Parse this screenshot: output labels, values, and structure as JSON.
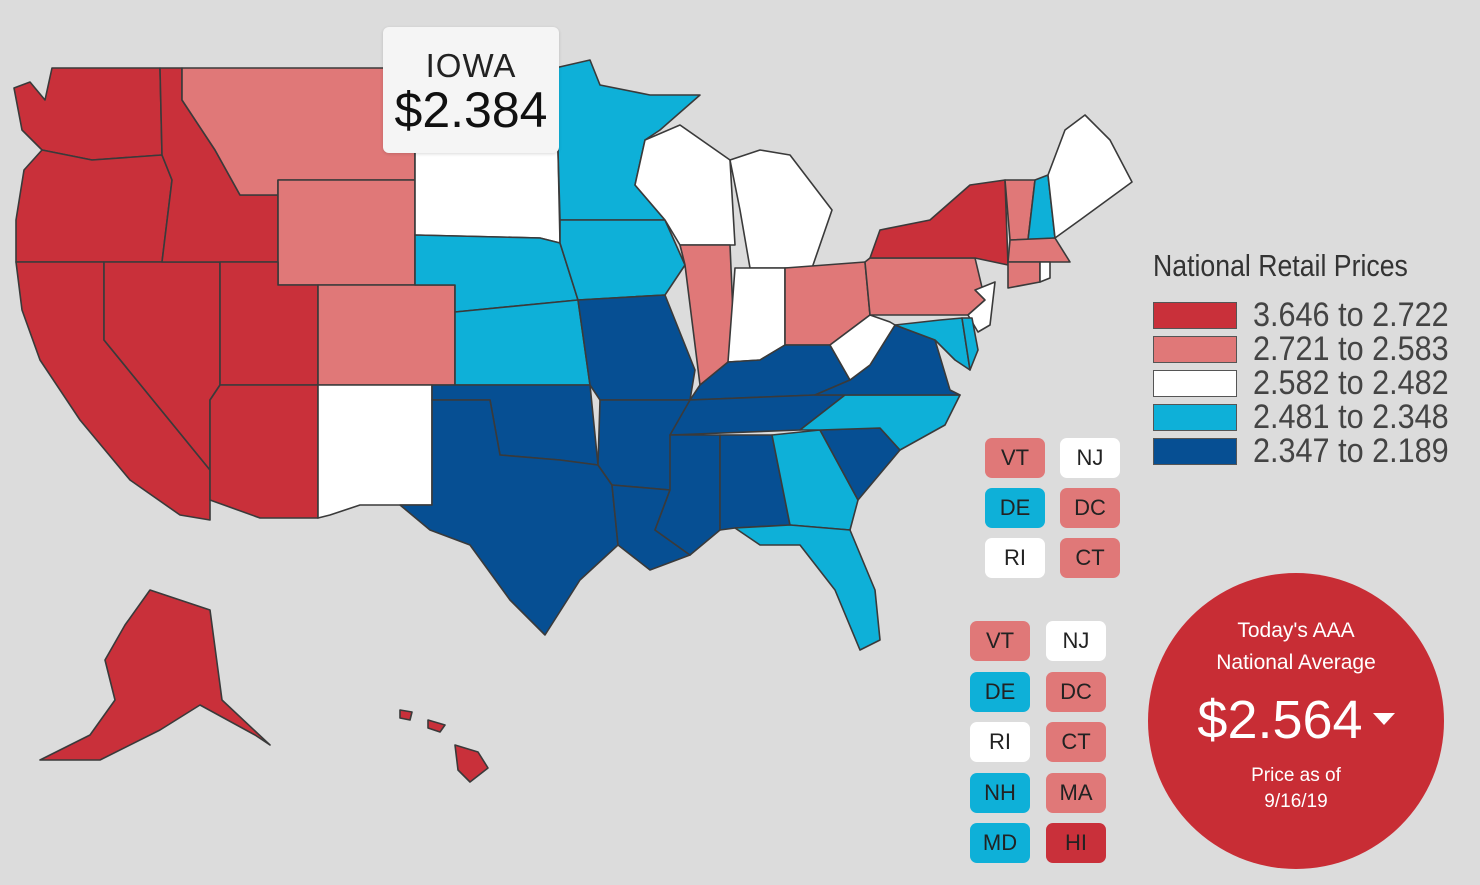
{
  "colors": {
    "tier1": "#c9303a",
    "tier2": "#e07878",
    "tier3": "#ffffff",
    "tier4": "#0eb0d8",
    "tier5": "#064f93",
    "badge": "#c82d35",
    "background": "#dcdcdc"
  },
  "tooltip": {
    "state": "IOWA",
    "price": "$2.384"
  },
  "legend": {
    "title": "National Retail Prices",
    "ranges": [
      {
        "label": "3.646 to 2.722",
        "color": "#c9303a"
      },
      {
        "label": "2.721 to 2.583",
        "color": "#e07878"
      },
      {
        "label": "2.582 to 2.482",
        "color": "#ffffff"
      },
      {
        "label": "2.481 to 2.348",
        "color": "#0eb0d8"
      },
      {
        "label": "2.347 to 2.189",
        "color": "#064f93"
      }
    ]
  },
  "chips_partial": [
    {
      "code": "VT",
      "color": "#e07878"
    },
    {
      "code": "NJ",
      "color": "#ffffff"
    },
    {
      "code": "DE",
      "color": "#0eb0d8"
    },
    {
      "code": "DC",
      "color": "#e07878"
    },
    {
      "code": "RI",
      "color": "#ffffff"
    },
    {
      "code": "CT",
      "color": "#e07878"
    }
  ],
  "chips": [
    {
      "code": "VT",
      "color": "#e07878"
    },
    {
      "code": "NJ",
      "color": "#ffffff"
    },
    {
      "code": "DE",
      "color": "#0eb0d8"
    },
    {
      "code": "DC",
      "color": "#e07878"
    },
    {
      "code": "RI",
      "color": "#ffffff"
    },
    {
      "code": "CT",
      "color": "#e07878"
    },
    {
      "code": "NH",
      "color": "#0eb0d8"
    },
    {
      "code": "MA",
      "color": "#e07878"
    },
    {
      "code": "MD",
      "color": "#0eb0d8"
    },
    {
      "code": "HI",
      "color": "#c9303a"
    }
  ],
  "badge": {
    "line1": "Today's AAA",
    "line2": "National Average",
    "price": "$2.564",
    "trend_icon": "caret-down-icon",
    "date_line1": "Price as of",
    "date_line2": "9/16/19"
  },
  "states": {
    "WA": "#c9303a",
    "OR": "#c9303a",
    "CA": "#c9303a",
    "NV": "#c9303a",
    "ID": "#c9303a",
    "UT": "#c9303a",
    "AZ": "#c9303a",
    "AK": "#c9303a",
    "HI": "#c9303a",
    "NY": "#c9303a",
    "MT": "#e07878",
    "WY": "#e07878",
    "CO": "#e07878",
    "IL": "#e07878",
    "OH": "#e07878",
    "PA": "#e07878",
    "VT": "#e07878",
    "MA": "#e07878",
    "CT": "#e07878",
    "ND": "#ffffff",
    "SD": "#ffffff",
    "NM": "#ffffff",
    "WI": "#ffffff",
    "MI": "#ffffff",
    "IN": "#ffffff",
    "WV": "#ffffff",
    "NJ": "#ffffff",
    "ME": "#ffffff",
    "RI": "#ffffff",
    "MN": "#0eb0d8",
    "IA": "#0eb0d8",
    "NE": "#0eb0d8",
    "KS": "#0eb0d8",
    "NC": "#0eb0d8",
    "GA": "#0eb0d8",
    "FL": "#0eb0d8",
    "NH": "#0eb0d8",
    "MD": "#0eb0d8",
    "DE": "#0eb0d8",
    "MO": "#064f93",
    "OK": "#064f93",
    "TX": "#064f93",
    "AR": "#064f93",
    "LA": "#064f93",
    "MS": "#064f93",
    "AL": "#064f93",
    "TN": "#064f93",
    "KY": "#064f93",
    "VA": "#064f93",
    "SC": "#064f93"
  }
}
